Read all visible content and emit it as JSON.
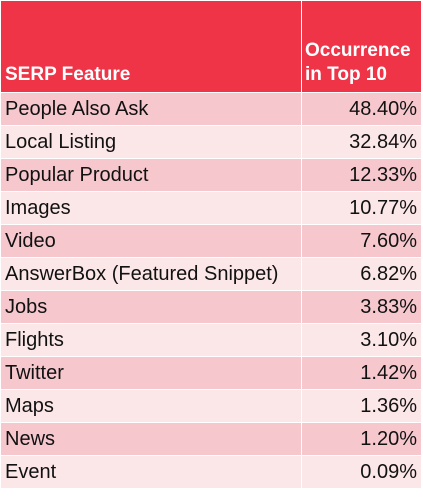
{
  "chart_data": {
    "type": "table",
    "columns": [
      "SERP Feature",
      "Occurrence in Top 10"
    ],
    "header": {
      "feature": "SERP Feature",
      "occurrence_line1": "Occurrence",
      "occurrence_line2": "in Top 10"
    },
    "rows": [
      {
        "feature": "People Also Ask",
        "occurrence": "48.40%"
      },
      {
        "feature": "Local Listing",
        "occurrence": "32.84%"
      },
      {
        "feature": "Popular Product",
        "occurrence": "12.33%"
      },
      {
        "feature": "Images",
        "occurrence": "10.77%"
      },
      {
        "feature": "Video",
        "occurrence": "7.60%"
      },
      {
        "feature": "AnswerBox (Featured Snippet)",
        "occurrence": "6.82%"
      },
      {
        "feature": "Jobs",
        "occurrence": "3.83%"
      },
      {
        "feature": "Flights",
        "occurrence": "3.10%"
      },
      {
        "feature": "Twitter",
        "occurrence": "1.42%"
      },
      {
        "feature": "Maps",
        "occurrence": "1.36%"
      },
      {
        "feature": "News",
        "occurrence": "1.20%"
      },
      {
        "feature": "Event",
        "occurrence": "0.09%"
      }
    ]
  },
  "colors": {
    "header": "#ef3447",
    "row_dark": "#f6c8cd",
    "row_light": "#fbe6e8"
  }
}
